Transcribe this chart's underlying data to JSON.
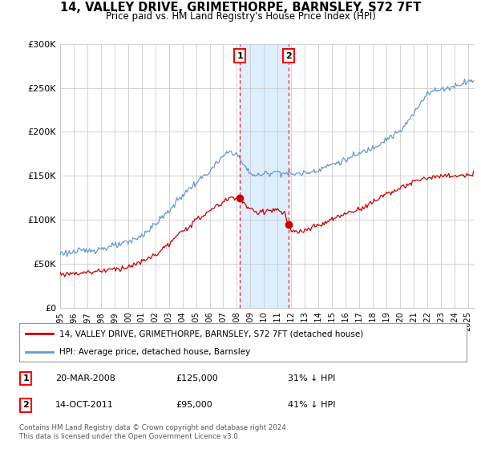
{
  "title": "14, VALLEY DRIVE, GRIMETHORPE, BARNSLEY, S72 7FT",
  "subtitle": "Price paid vs. HM Land Registry's House Price Index (HPI)",
  "legend_line1": "14, VALLEY DRIVE, GRIMETHORPE, BARNSLEY, S72 7FT (detached house)",
  "legend_line2": "HPI: Average price, detached house, Barnsley",
  "transaction1_date": "20-MAR-2008",
  "transaction1_price": 125000,
  "transaction1_pct": "31%",
  "transaction2_date": "14-OCT-2011",
  "transaction2_price": 95000,
  "transaction2_pct": "41%",
  "footer": "Contains HM Land Registry data © Crown copyright and database right 2024.\nThis data is licensed under the Open Government Licence v3.0.",
  "hpi_color": "#6699cc",
  "price_color": "#cc0000",
  "shade_color": "#ddeeff",
  "grid_color": "#cccccc",
  "background_color": "#ffffff",
  "ylim": [
    0,
    300000
  ],
  "xlim_start": 1995.0,
  "xlim_end": 2025.5,
  "transaction1_year": 2008.22,
  "transaction2_year": 2011.79,
  "hpi_key_years": [
    1995,
    1996,
    1997,
    1998,
    1999,
    2000,
    2001,
    2002,
    2003,
    2004,
    2005,
    2006,
    2007,
    2007.5,
    2008,
    2008.5,
    2009,
    2009.5,
    2010,
    2010.5,
    2011,
    2011.5,
    2012,
    2013,
    2014,
    2015,
    2016,
    2017,
    2018,
    2019,
    2020,
    2021,
    2022,
    2023,
    2024,
    2025
  ],
  "hpi_key_vals": [
    62000,
    63000,
    65000,
    67000,
    70000,
    74000,
    82000,
    95000,
    110000,
    128000,
    142000,
    155000,
    172000,
    178000,
    175000,
    162000,
    153000,
    150000,
    152000,
    154000,
    155000,
    153000,
    152000,
    153000,
    157000,
    163000,
    168000,
    175000,
    182000,
    192000,
    200000,
    220000,
    245000,
    248000,
    252000,
    258000
  ],
  "price_key_years": [
    1995,
    1996,
    1997,
    1998,
    1999,
    2000,
    2001,
    2002,
    2003,
    2004,
    2005,
    2006,
    2007,
    2007.5,
    2008.0,
    2008.22,
    2008.5,
    2009.0,
    2009.5,
    2010.0,
    2010.5,
    2011.0,
    2011.5,
    2011.79,
    2012.0,
    2012.5,
    2013,
    2014,
    2015,
    2016,
    2017,
    2018,
    2019,
    2020,
    2021,
    2022,
    2023,
    2024,
    2025
  ],
  "price_key_vals": [
    38000,
    39000,
    40000,
    42000,
    44000,
    46000,
    52000,
    60000,
    72000,
    87000,
    99000,
    110000,
    120000,
    125000,
    125500,
    125000,
    119000,
    111000,
    108000,
    110000,
    111000,
    111000,
    107000,
    95000,
    87000,
    85000,
    88000,
    93000,
    100000,
    107000,
    112000,
    120000,
    130000,
    135000,
    143000,
    148000,
    149000,
    150000,
    150000
  ]
}
